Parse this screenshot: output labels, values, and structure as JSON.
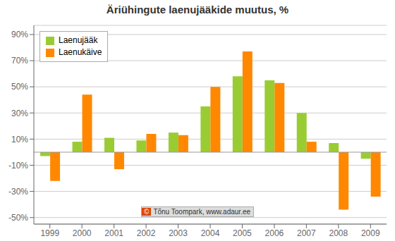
{
  "chart_data": {
    "type": "bar",
    "title": "Äriühingute laenujääkide muutus, %",
    "categories": [
      "1999",
      "2000",
      "2001",
      "2002",
      "2003",
      "2004",
      "2005",
      "2006",
      "2007",
      "2008",
      "2009"
    ],
    "series": [
      {
        "name": "Laenujääk",
        "color": "#99cc33",
        "values": [
          -3,
          8,
          11,
          9,
          15,
          35,
          58,
          55,
          30,
          7,
          -5
        ]
      },
      {
        "name": "Laenukäive",
        "color": "#ff8800",
        "values": [
          -22,
          44,
          -13,
          14,
          13,
          50,
          77,
          53,
          8,
          -44,
          -34
        ]
      }
    ],
    "ylim": [
      -55,
      97
    ],
    "yticks": [
      {
        "value": -50,
        "label": "-50%"
      },
      {
        "value": -30,
        "label": "-30%"
      },
      {
        "value": -10,
        "label": "-10%"
      },
      {
        "value": 10,
        "label": "10%"
      },
      {
        "value": 30,
        "label": "30%"
      },
      {
        "value": 50,
        "label": "50%"
      },
      {
        "value": 70,
        "label": "70%"
      },
      {
        "value": 90,
        "label": "90%"
      }
    ],
    "grid": true,
    "legend": "upper left",
    "annotations": [
      "© Tõnu Toompark, www.adaur.ee"
    ]
  }
}
